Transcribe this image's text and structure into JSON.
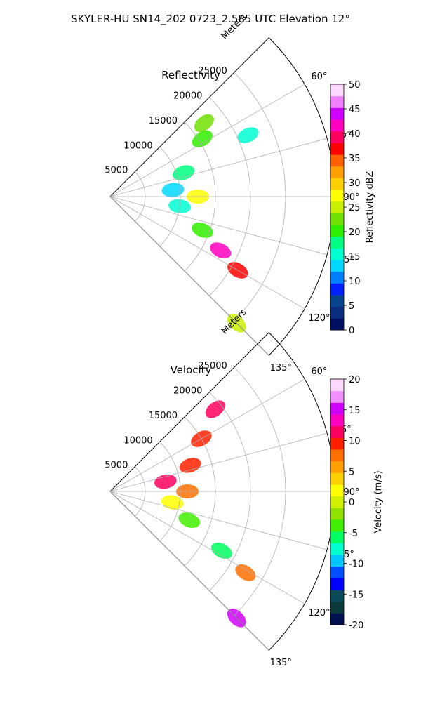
{
  "figure": {
    "suptitle": "SKYLER-HU  SN14_202  0723_2.585 UTC Elevation 12°"
  },
  "chart_data": [
    {
      "type": "heatmap",
      "projection": "polar-sector",
      "title": "Reflectivity",
      "radial_label": "Meters",
      "radial_ticks": [
        "5000",
        "10000",
        "15000",
        "20000",
        "25000"
      ],
      "radial_tick_values": [
        5000,
        10000,
        15000,
        20000,
        25000
      ],
      "angular_ticks": [
        "60°",
        "75°",
        "90°",
        "105°",
        "120°",
        "135°"
      ],
      "angular_tick_values": [
        60,
        75,
        90,
        105,
        120,
        135
      ],
      "theta_range_deg": [
        45,
        135
      ],
      "r_range": [
        0,
        32000
      ],
      "grid": true,
      "colorbar": {
        "label": "Reflectivity dBZ",
        "ticks": [
          "0",
          "5",
          "10",
          "15",
          "20",
          "25",
          "30",
          "35",
          "40",
          "45",
          "50"
        ],
        "range": [
          0,
          50
        ],
        "colors": [
          "#001060",
          "#0a2f80",
          "#08458f",
          "#0020ff",
          "#0080ff",
          "#00d8ff",
          "#00ffd0",
          "#00ff80",
          "#30ee00",
          "#70e000",
          "#c8f000",
          "#ffff00",
          "#ffd000",
          "#ffa000",
          "#ff6000",
          "#ff0000",
          "#ff0060",
          "#ff00c0",
          "#d000ff",
          "#f080ff",
          "#ffd8ff"
        ]
      },
      "echoes": [
        {
          "theta": 52,
          "r": 17000,
          "dbz": 22
        },
        {
          "theta": 58,
          "r": 15500,
          "dbz": 20
        },
        {
          "theta": 66,
          "r": 21500,
          "dbz": 16
        },
        {
          "theta": 72,
          "r": 11000,
          "dbz": 18
        },
        {
          "theta": 84,
          "r": 9000,
          "dbz": 14
        },
        {
          "theta": 90,
          "r": 12500,
          "dbz": 28
        },
        {
          "theta": 98,
          "r": 10000,
          "dbz": 16
        },
        {
          "theta": 110,
          "r": 14000,
          "dbz": 20
        },
        {
          "theta": 116,
          "r": 17500,
          "dbz": 42
        },
        {
          "theta": 120,
          "r": 21000,
          "dbz": 38
        },
        {
          "theta": 135,
          "r": 25500,
          "dbz": 26
        }
      ]
    },
    {
      "type": "heatmap",
      "projection": "polar-sector",
      "title": "Velocity",
      "radial_label": "Meters",
      "radial_ticks": [
        "5000",
        "10000",
        "15000",
        "20000",
        "25000"
      ],
      "radial_tick_values": [
        5000,
        10000,
        15000,
        20000,
        25000
      ],
      "angular_ticks": [
        "60°",
        "75°",
        "90°",
        "105°",
        "120°",
        "135°"
      ],
      "angular_tick_values": [
        60,
        75,
        90,
        105,
        120,
        135
      ],
      "theta_range_deg": [
        45,
        135
      ],
      "r_range": [
        0,
        32000
      ],
      "grid": true,
      "colorbar": {
        "label": "Velocity (m/s)",
        "ticks": [
          "-20",
          "-15",
          "-10",
          "-5",
          "0",
          "5",
          "10",
          "15",
          "20"
        ],
        "range": [
          -20,
          20
        ],
        "colors": [
          "#001050",
          "#0a3a3a",
          "#0a4a5a",
          "#0000ff",
          "#0050ff",
          "#00c8ff",
          "#00ffd0",
          "#00ff60",
          "#40f000",
          "#90e000",
          "#d0f000",
          "#ffff00",
          "#ffd000",
          "#ffa000",
          "#ff7000",
          "#ff2000",
          "#ff0060",
          "#ff00c0",
          "#d000ff",
          "#f090ff",
          "#ffd8ff"
        ]
      },
      "echoes": [
        {
          "theta": 52,
          "r": 19000,
          "vel": 12
        },
        {
          "theta": 60,
          "r": 15000,
          "vel": 9
        },
        {
          "theta": 72,
          "r": 12000,
          "vel": 9
        },
        {
          "theta": 80,
          "r": 8000,
          "vel": 12
        },
        {
          "theta": 90,
          "r": 11000,
          "vel": 7
        },
        {
          "theta": 100,
          "r": 9000,
          "vel": 2
        },
        {
          "theta": 110,
          "r": 12000,
          "vel": -4
        },
        {
          "theta": 118,
          "r": 18000,
          "vel": -6
        },
        {
          "theta": 121,
          "r": 22500,
          "vel": 8
        },
        {
          "theta": 135,
          "r": 25500,
          "vel": 15
        }
      ]
    }
  ]
}
